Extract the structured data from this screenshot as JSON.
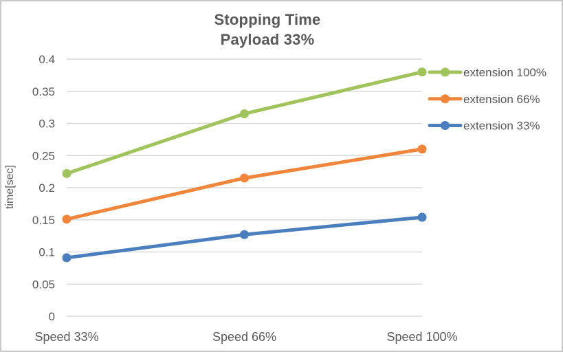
{
  "chart_data": {
    "type": "line",
    "title_lines": [
      "Stopping Time",
      "Payload 33%"
    ],
    "title": "Stopping Time Payload 33%",
    "xlabel": "",
    "ylabel": "time[sec]",
    "categories": [
      "Speed 33%",
      "Speed 66%",
      "Speed 100%"
    ],
    "series": [
      {
        "name": "extension 100%",
        "color": "#A1C35C",
        "values": [
          0.222,
          0.315,
          0.38
        ]
      },
      {
        "name": "extension 66%",
        "color": "#EF863B",
        "values": [
          0.151,
          0.215,
          0.26
        ]
      },
      {
        "name": "extension 33%",
        "color": "#4A7EBD",
        "values": [
          0.091,
          0.127,
          0.154
        ]
      }
    ],
    "ylim": [
      0,
      0.4
    ],
    "ytick_step": 0.05,
    "grid": true,
    "legend_position": "right",
    "text_color": "#595959",
    "grid_color": "#D9D9D9"
  }
}
